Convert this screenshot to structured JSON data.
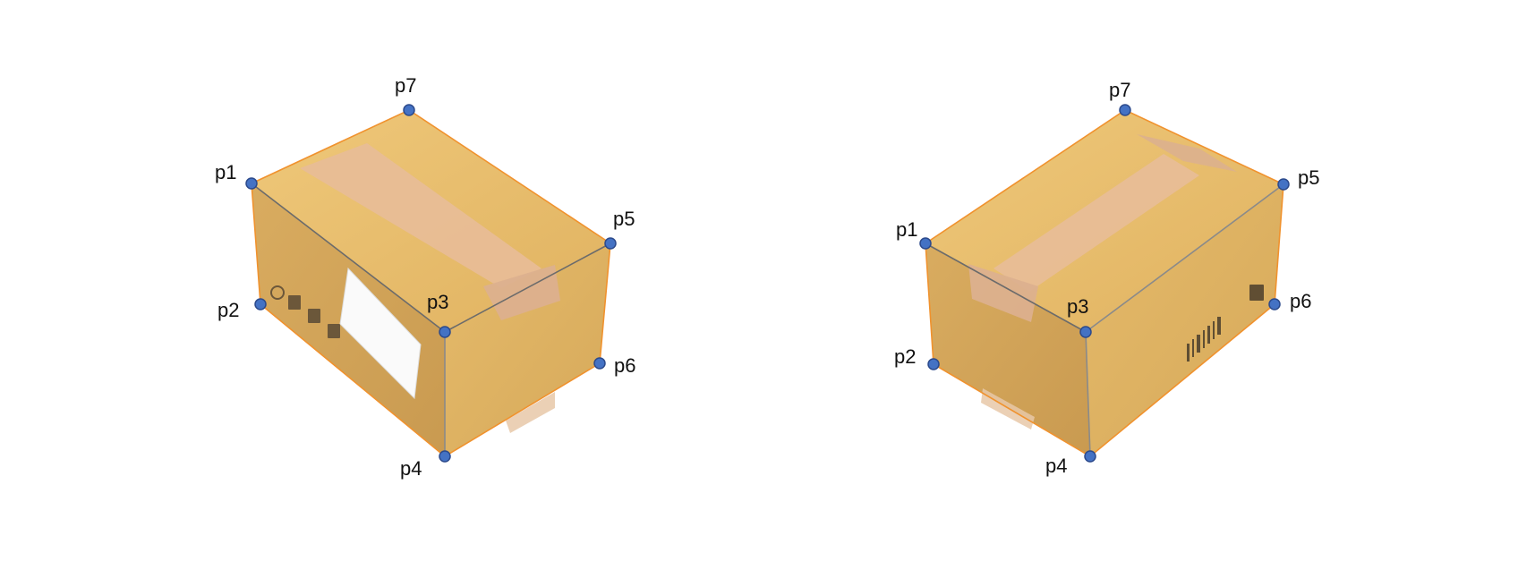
{
  "colors": {
    "keypoint_fill": "#4472c4",
    "keypoint_stroke": "#2c4a8c",
    "outline": "#f0922e",
    "box_top": "#e9bf6c",
    "box_left": "#d2a458",
    "box_right": "#deb262",
    "tape": "#e6b894",
    "label_bg": "#ffffff"
  },
  "boxes": [
    {
      "view": "left",
      "keypoints": [
        {
          "label": "p1"
        },
        {
          "label": "p2"
        },
        {
          "label": "p3"
        },
        {
          "label": "p4"
        },
        {
          "label": "p5"
        },
        {
          "label": "p6"
        },
        {
          "label": "p7"
        }
      ]
    },
    {
      "view": "right",
      "keypoints": [
        {
          "label": "p1"
        },
        {
          "label": "p2"
        },
        {
          "label": "p3"
        },
        {
          "label": "p4"
        },
        {
          "label": "p5"
        },
        {
          "label": "p6"
        },
        {
          "label": "p7"
        }
      ]
    }
  ]
}
